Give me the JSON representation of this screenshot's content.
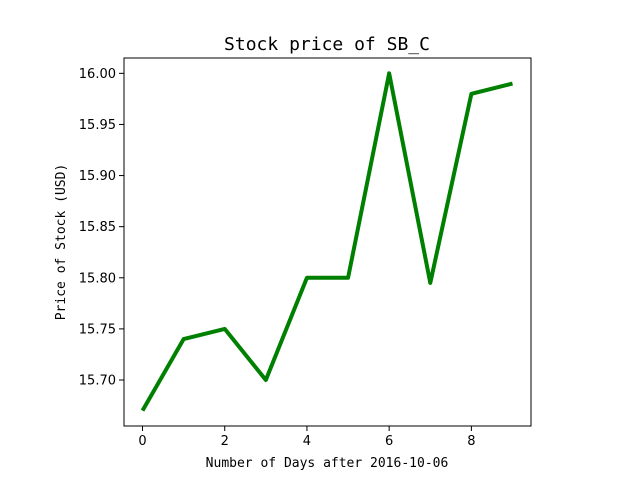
{
  "chart_data": {
    "type": "line",
    "title": "Stock price of SB_C",
    "xlabel": "Number of Days after 2016-10-06",
    "ylabel": "Price of Stock (USD)",
    "x": [
      0,
      1,
      2,
      3,
      4,
      5,
      6,
      7,
      8,
      9
    ],
    "series": [
      {
        "values": [
          15.67,
          15.74,
          15.75,
          15.7,
          15.8,
          15.8,
          16.0,
          15.795,
          15.98,
          15.99
        ],
        "color": "#008000"
      }
    ],
    "xlim": [
      -0.45,
      9.45
    ],
    "ylim": [
      15.655,
      16.015
    ],
    "xticks": [
      0,
      2,
      4,
      6,
      8
    ],
    "xtick_labels": [
      "0",
      "2",
      "4",
      "6",
      "8"
    ],
    "yticks": [
      15.7,
      15.75,
      15.8,
      15.85,
      15.9,
      15.95,
      16.0
    ],
    "ytick_labels": [
      "15.70",
      "15.75",
      "15.80",
      "15.85",
      "15.90",
      "15.95",
      "16.00"
    ],
    "grid": false,
    "legend": "none"
  }
}
